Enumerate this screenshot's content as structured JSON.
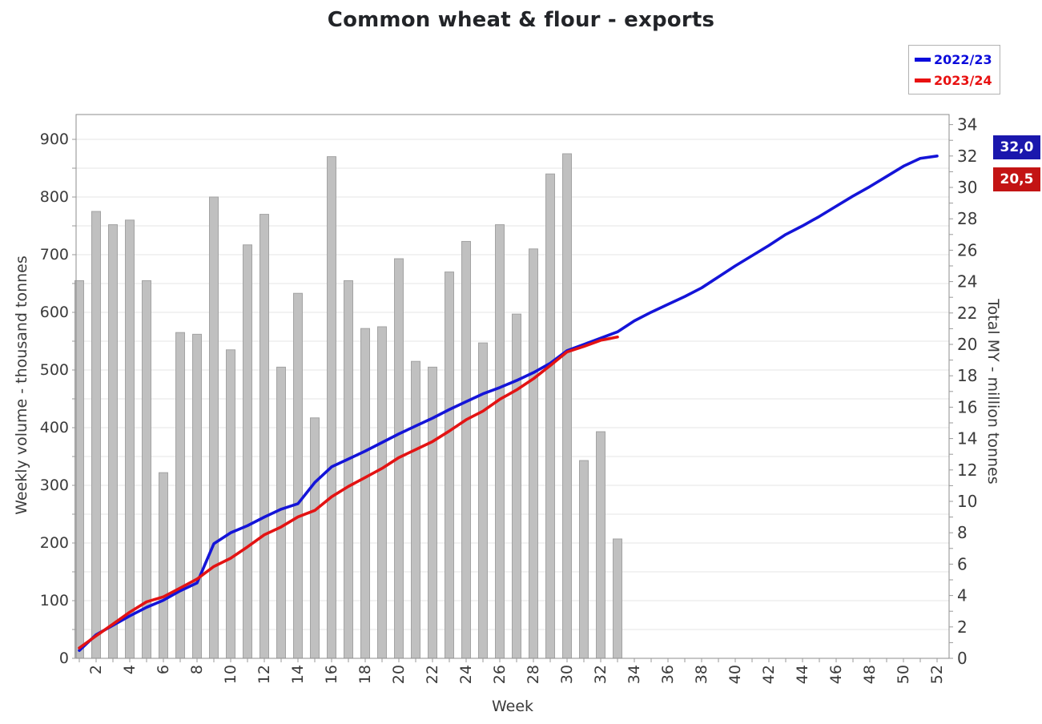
{
  "title": "Common wheat & flour - exports",
  "legend": {
    "items": [
      {
        "label": "2022/23",
        "color": "#0b0bdc"
      },
      {
        "label": "2023/24",
        "color": "#e81111"
      }
    ]
  },
  "badges": [
    {
      "value": "32,0",
      "bg": "#1a17ad"
    },
    {
      "value": "20,5",
      "bg": "#c31414"
    }
  ],
  "chart_data": {
    "type": "combo",
    "x_axis": {
      "label": "Week",
      "min": 1,
      "max": 52,
      "tick_labels": [
        "2",
        "4",
        "6",
        "8",
        "10",
        "12",
        "14",
        "16",
        "18",
        "20",
        "22",
        "24",
        "26",
        "28",
        "30",
        "32",
        "34",
        "36",
        "38",
        "40",
        "42",
        "44",
        "46",
        "48",
        "50",
        "52"
      ]
    },
    "left_axis": {
      "label": "Weekly volume - thousand tonnes",
      "min": 0,
      "max": 943,
      "label_step": 100,
      "grid_step": 50,
      "tick_labels": [
        "0",
        "100",
        "200",
        "300",
        "400",
        "500",
        "600",
        "700",
        "800",
        "900"
      ]
    },
    "right_axis": {
      "label": "Total MY - million tonnes",
      "min": 0,
      "max": 34.6,
      "label_step": 2,
      "tick_step": 1,
      "tick_labels": [
        "0",
        "2",
        "4",
        "6",
        "8",
        "10",
        "12",
        "14",
        "16",
        "18",
        "20",
        "22",
        "24",
        "26",
        "28",
        "30",
        "32",
        "34"
      ]
    },
    "bars": {
      "name": "Weekly volume 2023/24",
      "axis": "left",
      "color": "#c0c0c0",
      "border": "#a3a3a3",
      "start_week": 1,
      "values": [
        655,
        775,
        752,
        760,
        655,
        322,
        565,
        562,
        800,
        535,
        717,
        770,
        505,
        633,
        417,
        870,
        655,
        572,
        575,
        693,
        515,
        505,
        670,
        723,
        547,
        752,
        597,
        710,
        840,
        875,
        343,
        393,
        207
      ]
    },
    "series": [
      {
        "name": "2022/23",
        "axis": "right",
        "color": "#1414d8",
        "end_value": 32.0,
        "start_week": 1,
        "values": [
          0.5,
          1.5,
          2.1,
          2.7,
          3.25,
          3.7,
          4.3,
          4.8,
          7.3,
          8.0,
          8.45,
          9.0,
          9.5,
          9.85,
          11.2,
          12.2,
          12.7,
          13.2,
          13.75,
          14.3,
          14.8,
          15.3,
          15.85,
          16.35,
          16.85,
          17.25,
          17.7,
          18.2,
          18.8,
          19.6,
          20.0,
          20.4,
          20.8,
          21.5,
          22.05,
          22.55,
          23.05,
          23.6,
          24.3,
          25.0,
          25.65,
          26.3,
          27.0,
          27.55,
          28.15,
          28.8,
          29.45,
          30.05,
          30.7,
          31.35,
          31.85,
          32.0
        ]
      },
      {
        "name": "2023/24",
        "axis": "right",
        "color": "#e31313",
        "end_value": 20.5,
        "start_week": 1,
        "values": [
          0.66,
          1.43,
          2.18,
          2.94,
          3.6,
          3.92,
          4.48,
          5.05,
          5.85,
          6.38,
          7.1,
          7.87,
          8.37,
          9.01,
          9.42,
          10.29,
          10.95,
          11.52,
          12.1,
          12.79,
          13.3,
          13.81,
          14.48,
          15.2,
          15.75,
          16.5,
          17.1,
          17.81,
          18.65,
          19.52,
          19.87,
          20.26,
          20.47
        ]
      }
    ],
    "grid": true,
    "legend_position": "top-right"
  }
}
